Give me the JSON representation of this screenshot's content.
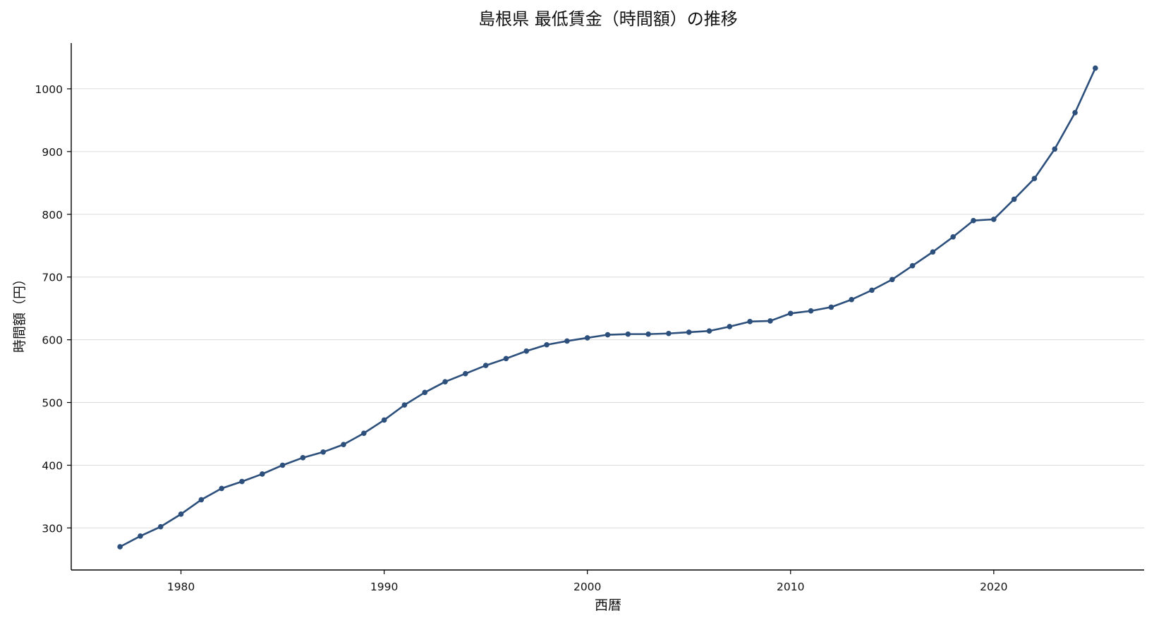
{
  "colors": {
    "line": "#2c4f7c",
    "grid": "#dcdcdc",
    "axis": "#000000"
  },
  "chart_data": {
    "type": "line",
    "title": "島根県 最低賃金（時間額）の推移",
    "xlabel": "西暦",
    "ylabel": "時間額（円）",
    "xlim": [
      1974.6,
      2027.4
    ],
    "ylim": [
      233,
      1073
    ],
    "xticks": [
      1980,
      1990,
      2000,
      2010,
      2020
    ],
    "yticks": [
      300,
      400,
      500,
      600,
      700,
      800,
      900,
      1000
    ],
    "grid": "horizontal",
    "series": [
      {
        "x": [
          1977,
          1978,
          1979,
          1980,
          1981,
          1982,
          1983,
          1984,
          1985,
          1986,
          1987,
          1988,
          1989,
          1990,
          1991,
          1992,
          1993,
          1994,
          1995,
          1996,
          1997,
          1998,
          1999,
          2000,
          2001,
          2002,
          2003,
          2004,
          2005,
          2006,
          2007,
          2008,
          2009,
          2010,
          2011,
          2012,
          2013,
          2014,
          2015,
          2016,
          2017,
          2018,
          2019,
          2020,
          2021,
          2022,
          2023,
          2024,
          2025
        ],
        "values": [
          270,
          287,
          302,
          322,
          345,
          363,
          374,
          386,
          400,
          412,
          421,
          433,
          451,
          472,
          496,
          516,
          533,
          546,
          559,
          570,
          582,
          592,
          598,
          603,
          608,
          609,
          609,
          610,
          612,
          614,
          621,
          629,
          630,
          642,
          646,
          652,
          664,
          679,
          696,
          718,
          740,
          764,
          790,
          792,
          824,
          857,
          904,
          962,
          1033
        ]
      }
    ]
  }
}
